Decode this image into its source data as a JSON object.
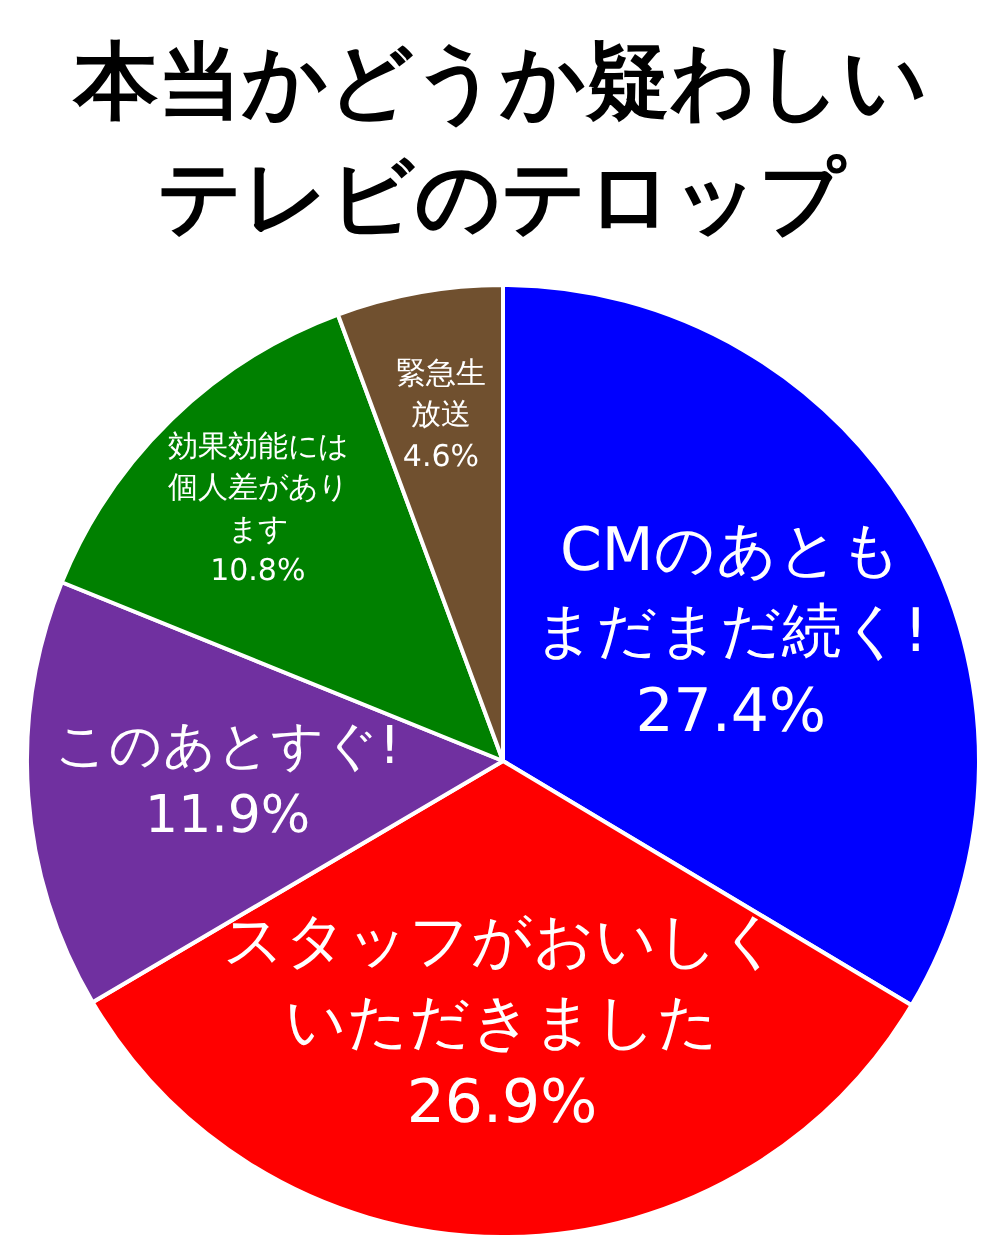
{
  "chart_data": {
    "type": "pie",
    "title": "本当かどうか疑わしいテレビのテロップ",
    "categories": [
      "CMのあともまだまだ続く!",
      "スタッフがおいしくいただきました",
      "このあとすぐ!",
      "効果効能には個人差があります",
      "緊急生放送"
    ],
    "values": [
      27.4,
      26.9,
      11.9,
      10.8,
      4.6
    ],
    "value_labels": [
      "27.4%",
      "26.9%",
      "11.9%",
      "10.8%",
      "4.6%"
    ],
    "colors": [
      "#0000ff",
      "#ff0000",
      "#7030a0",
      "#008000",
      "#70502f"
    ]
  }
}
